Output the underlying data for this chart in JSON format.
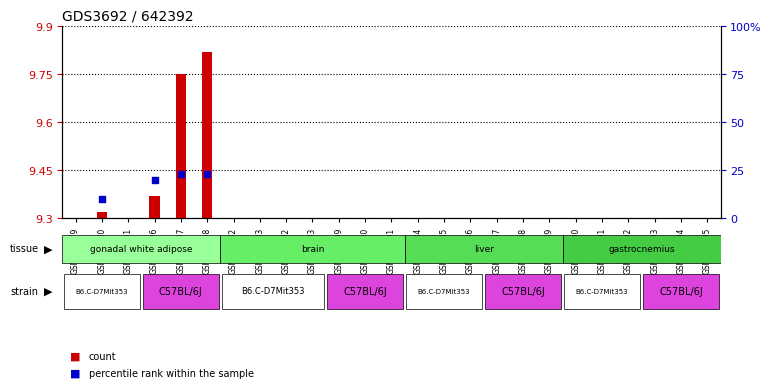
{
  "title": "GDS3692 / 642392",
  "samples": [
    "GSM179979",
    "GSM179980",
    "GSM179981",
    "GSM179996",
    "GSM179997",
    "GSM179998",
    "GSM179982",
    "GSM179983",
    "GSM180002",
    "GSM180003",
    "GSM179999",
    "GSM180000",
    "GSM180001",
    "GSM179984",
    "GSM179985",
    "GSM179986",
    "GSM179987",
    "GSM179988",
    "GSM179989",
    "GSM179990",
    "GSM179991",
    "GSM179992",
    "GSM179993",
    "GSM179994",
    "GSM179995"
  ],
  "count_values": [
    0,
    9.32,
    0,
    9.37,
    9.75,
    9.82,
    0,
    0,
    0,
    0,
    0,
    0,
    0,
    0,
    0,
    0,
    0,
    0,
    0,
    0,
    0,
    0,
    0,
    0,
    0
  ],
  "percentile_values": [
    0,
    9.36,
    0,
    9.42,
    9.44,
    9.44,
    0,
    0,
    0,
    0,
    0,
    0,
    0,
    0,
    0,
    0,
    0,
    0,
    0,
    0,
    0,
    0,
    0,
    0,
    0
  ],
  "ymin": 9.3,
  "ymax": 9.9,
  "yticks": [
    9.3,
    9.45,
    9.6,
    9.75,
    9.9
  ],
  "ytick_labels": [
    "9.3",
    "9.45",
    "9.6",
    "9.75",
    "9.9"
  ],
  "y2ticks": [
    0,
    25,
    50,
    75,
    100
  ],
  "y2tick_labels": [
    "0",
    "25",
    "50",
    "75",
    "100%"
  ],
  "left_tick_color": "#cc0000",
  "right_tick_color": "#0000cc",
  "tissue_groups": [
    {
      "label": "gonadal white adipose",
      "start": 0,
      "end": 5,
      "color": "#99ff99"
    },
    {
      "label": "brain",
      "start": 6,
      "end": 12,
      "color": "#66ee66"
    },
    {
      "label": "liver",
      "start": 13,
      "end": 18,
      "color": "#55dd55"
    },
    {
      "label": "gastrocnemius",
      "start": 19,
      "end": 24,
      "color": "#44cc44"
    }
  ],
  "strain_groups": [
    {
      "label": "B6.C-D7Mit353",
      "start": 0,
      "end": 2,
      "color": "#ffffff",
      "fontsize": 5
    },
    {
      "label": "C57BL/6J",
      "start": 3,
      "end": 5,
      "color": "#dd44dd",
      "fontsize": 7
    },
    {
      "label": "B6.C-D7Mit353",
      "start": 6,
      "end": 9,
      "color": "#ffffff",
      "fontsize": 6
    },
    {
      "label": "C57BL/6J",
      "start": 10,
      "end": 12,
      "color": "#dd44dd",
      "fontsize": 7
    },
    {
      "label": "B6.C-D7Mit353",
      "start": 13,
      "end": 15,
      "color": "#ffffff",
      "fontsize": 5
    },
    {
      "label": "C57BL/6J",
      "start": 16,
      "end": 18,
      "color": "#dd44dd",
      "fontsize": 7
    },
    {
      "label": "B6.C-D7Mit353",
      "start": 19,
      "end": 21,
      "color": "#ffffff",
      "fontsize": 5
    },
    {
      "label": "C57BL/6J",
      "start": 22,
      "end": 24,
      "color": "#dd44dd",
      "fontsize": 7
    }
  ],
  "count_color": "#cc0000",
  "percentile_color": "#0000cc",
  "bar_width": 0.4,
  "dot_size": 20
}
